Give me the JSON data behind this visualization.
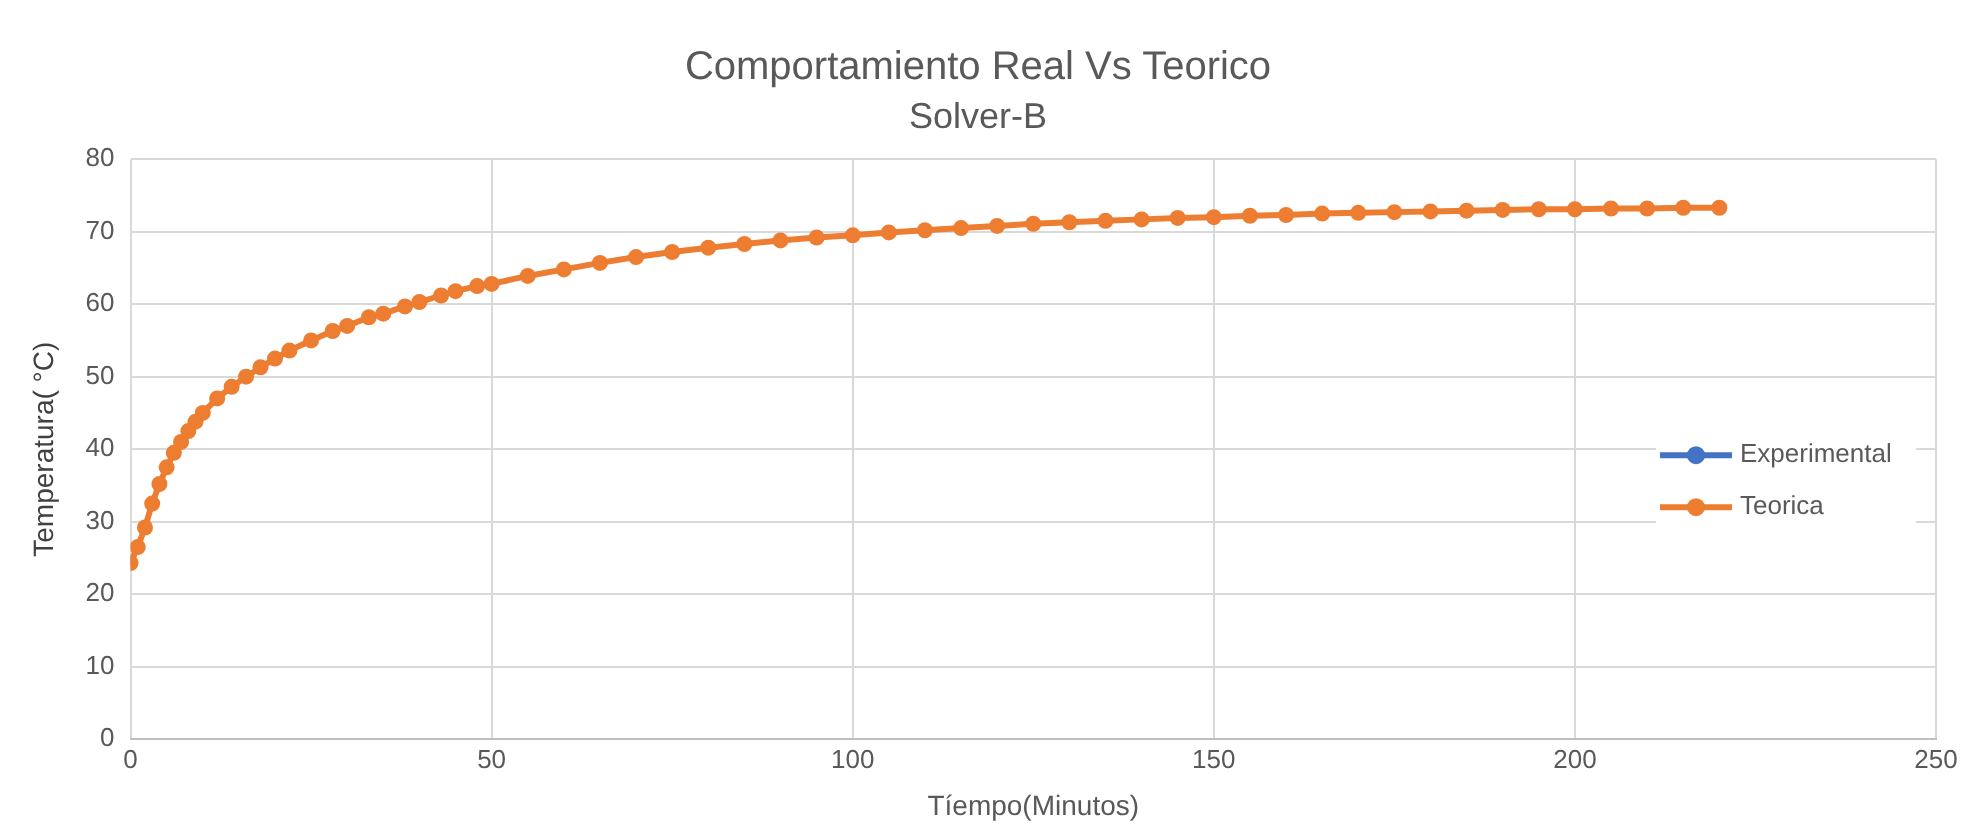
{
  "chart_data": {
    "type": "line",
    "title": "Comportamiento Real Vs Teorico",
    "subtitle": "Solver-B",
    "xlabel": "Tíempo(Minutos)",
    "ylabel": "Temperatura( °C)",
    "xlim": [
      0,
      250
    ],
    "xticks": [
      0,
      50,
      100,
      150,
      200,
      250
    ],
    "ylim": [
      0,
      80
    ],
    "yticks": [
      0,
      10,
      20,
      30,
      40,
      50,
      60,
      70,
      80
    ],
    "grid": true,
    "legend": "right",
    "marker": "circle",
    "line_style": "solid",
    "series": [
      {
        "name": "Experimental",
        "color": "#4472c4"
      },
      {
        "name": "Teorica",
        "color": "#ed7d31",
        "x": [
          0,
          1,
          2,
          3,
          4,
          5,
          6,
          7,
          8,
          9,
          10,
          12,
          14,
          16,
          18,
          20,
          22,
          25,
          28,
          30,
          33,
          35,
          38,
          40,
          43,
          45,
          48,
          50,
          55,
          60,
          65,
          70,
          75,
          80,
          85,
          90,
          95,
          100,
          105,
          110,
          115,
          120,
          125,
          130,
          135,
          140,
          145,
          150,
          155,
          160,
          165,
          170,
          175,
          180,
          185,
          190,
          195,
          200,
          205,
          210,
          215,
          220
        ],
        "values": [
          24.3,
          26.5,
          29.2,
          32.5,
          35.2,
          37.5,
          39.5,
          41,
          42.5,
          43.8,
          45,
          47,
          48.6,
          50,
          51.3,
          52.5,
          53.6,
          55,
          56.3,
          57,
          58.2,
          58.7,
          59.7,
          60.3,
          61.2,
          61.8,
          62.5,
          62.8,
          63.9,
          64.8,
          65.7,
          66.5,
          67.2,
          67.8,
          68.3,
          68.8,
          69.2,
          69.5,
          69.9,
          70.2,
          70.5,
          70.8,
          71.1,
          71.3,
          71.5,
          71.7,
          71.9,
          72,
          72.2,
          72.3,
          72.5,
          72.6,
          72.7,
          72.8,
          72.9,
          73,
          73.1,
          73.1,
          73.2,
          73.2,
          73.3,
          73.3
        ]
      }
    ]
  }
}
